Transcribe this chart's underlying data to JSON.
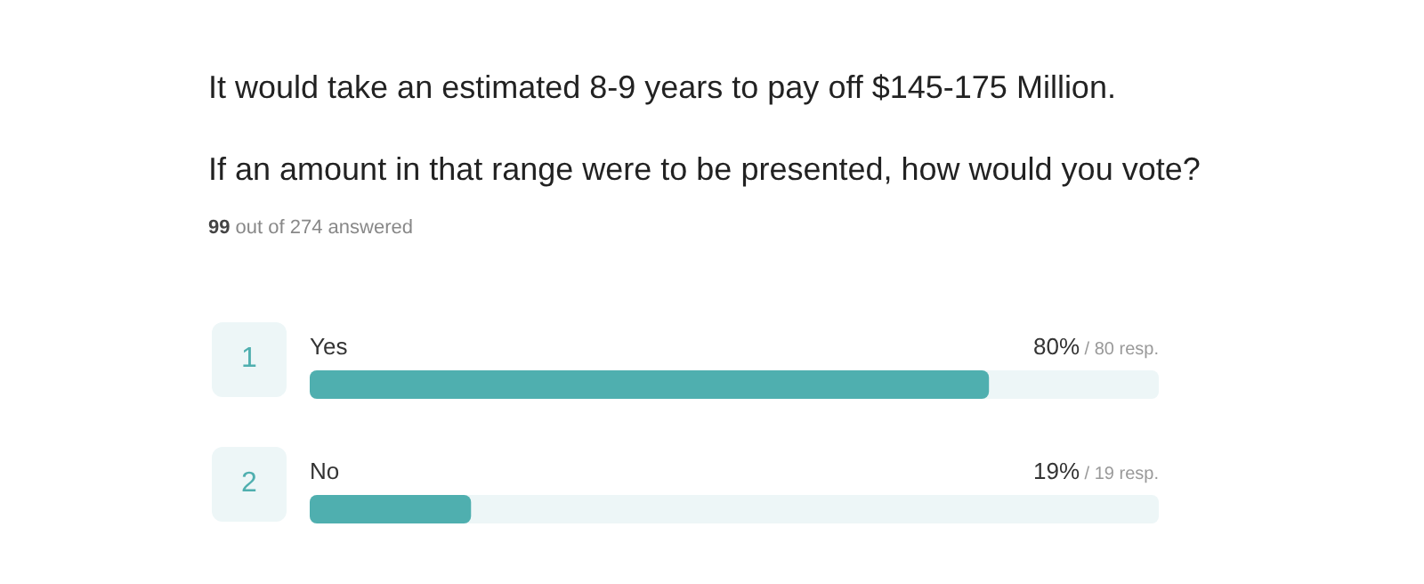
{
  "chart_data": {
    "type": "bar",
    "orientation": "horizontal",
    "title": "It would take an estimated 8-9 years to pay off $145-175 Million.",
    "subtitle": "If an amount in that range were to be presented, how would you vote?",
    "annotations": [
      "99 out of 274 answered",
      "1",
      "2"
    ],
    "categories": [
      "Yes",
      "No"
    ],
    "values": [
      80,
      19
    ],
    "color": "#4fafaf",
    "value_labels": [
      "80% / 80 resp.",
      "19% / 19 resp."
    ],
    "xlim": [
      0,
      100
    ],
    "tick_labels": false,
    "grid": false
  }
}
